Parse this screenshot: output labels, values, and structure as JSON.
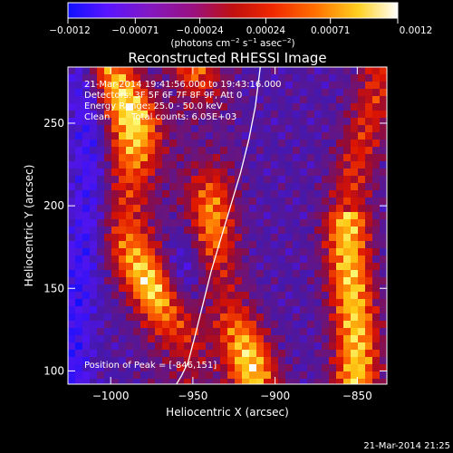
{
  "chart_data": {
    "type": "heatmap",
    "title": "Reconstructed RHESSI Image",
    "xlabel": "Heliocentric X (arcsec)",
    "ylabel": "Heliocentric Y (arcsec)",
    "xlim": [
      -1026,
      -832
    ],
    "ylim": [
      92,
      284
    ],
    "x_ticks": [
      -1000,
      -950,
      -900,
      -850
    ],
    "x_tick_labels": [
      "−1000",
      "−950",
      "−900",
      "−850"
    ],
    "y_ticks": [
      100,
      150,
      200,
      250
    ],
    "y_tick_labels": [
      "100",
      "150",
      "200",
      "250"
    ],
    "colorbar": {
      "ticks": [
        -0.0012,
        -0.00071,
        -0.00024,
        0.00024,
        0.00071,
        0.0012
      ],
      "tick_labels": [
        "−0.0012",
        "−0.00071",
        "−0.00024",
        "0.00024",
        "0.00071",
        "0.0012"
      ],
      "range": [
        -0.0012,
        0.0012
      ],
      "unit_text": "(photons cm",
      "unit_sup1": "−2",
      "unit_mid": " s",
      "unit_sup2": "−1",
      "unit_mid2": " asec",
      "unit_sup3": "−2",
      "unit_end": ")",
      "colors": [
        "#1010ff",
        "#6a18ff",
        "#8a1aa8",
        "#b01040",
        "#e01000",
        "#ff6800",
        "#ffc000",
        "#ffff80",
        "#ffffff"
      ]
    },
    "annotations": {
      "time_range": "21-Mar-2014 19:41:56.000 to 19:43:16.000",
      "detectors": "Detectors: 3F 5F 6F 7F 8F 9F, Att 0",
      "energy_range": "Energy Range: 25.0 - 50.0 keV",
      "algorithm": "Clean",
      "total_counts": "Total counts: 6.05E+03",
      "peak_position": "Position of Peak = [-846,151]"
    },
    "peak": [
      -846,
      151
    ],
    "limb_curve_x": [
      -909,
      -912,
      -916,
      -921,
      -927,
      -933,
      -939,
      -944,
      -949,
      -953,
      -957,
      -960
    ],
    "limb_curve_y": [
      284,
      260,
      240,
      220,
      200,
      180,
      160,
      140,
      120,
      105,
      97,
      92
    ],
    "timestamp": "21-Mar-2014 21:25"
  }
}
